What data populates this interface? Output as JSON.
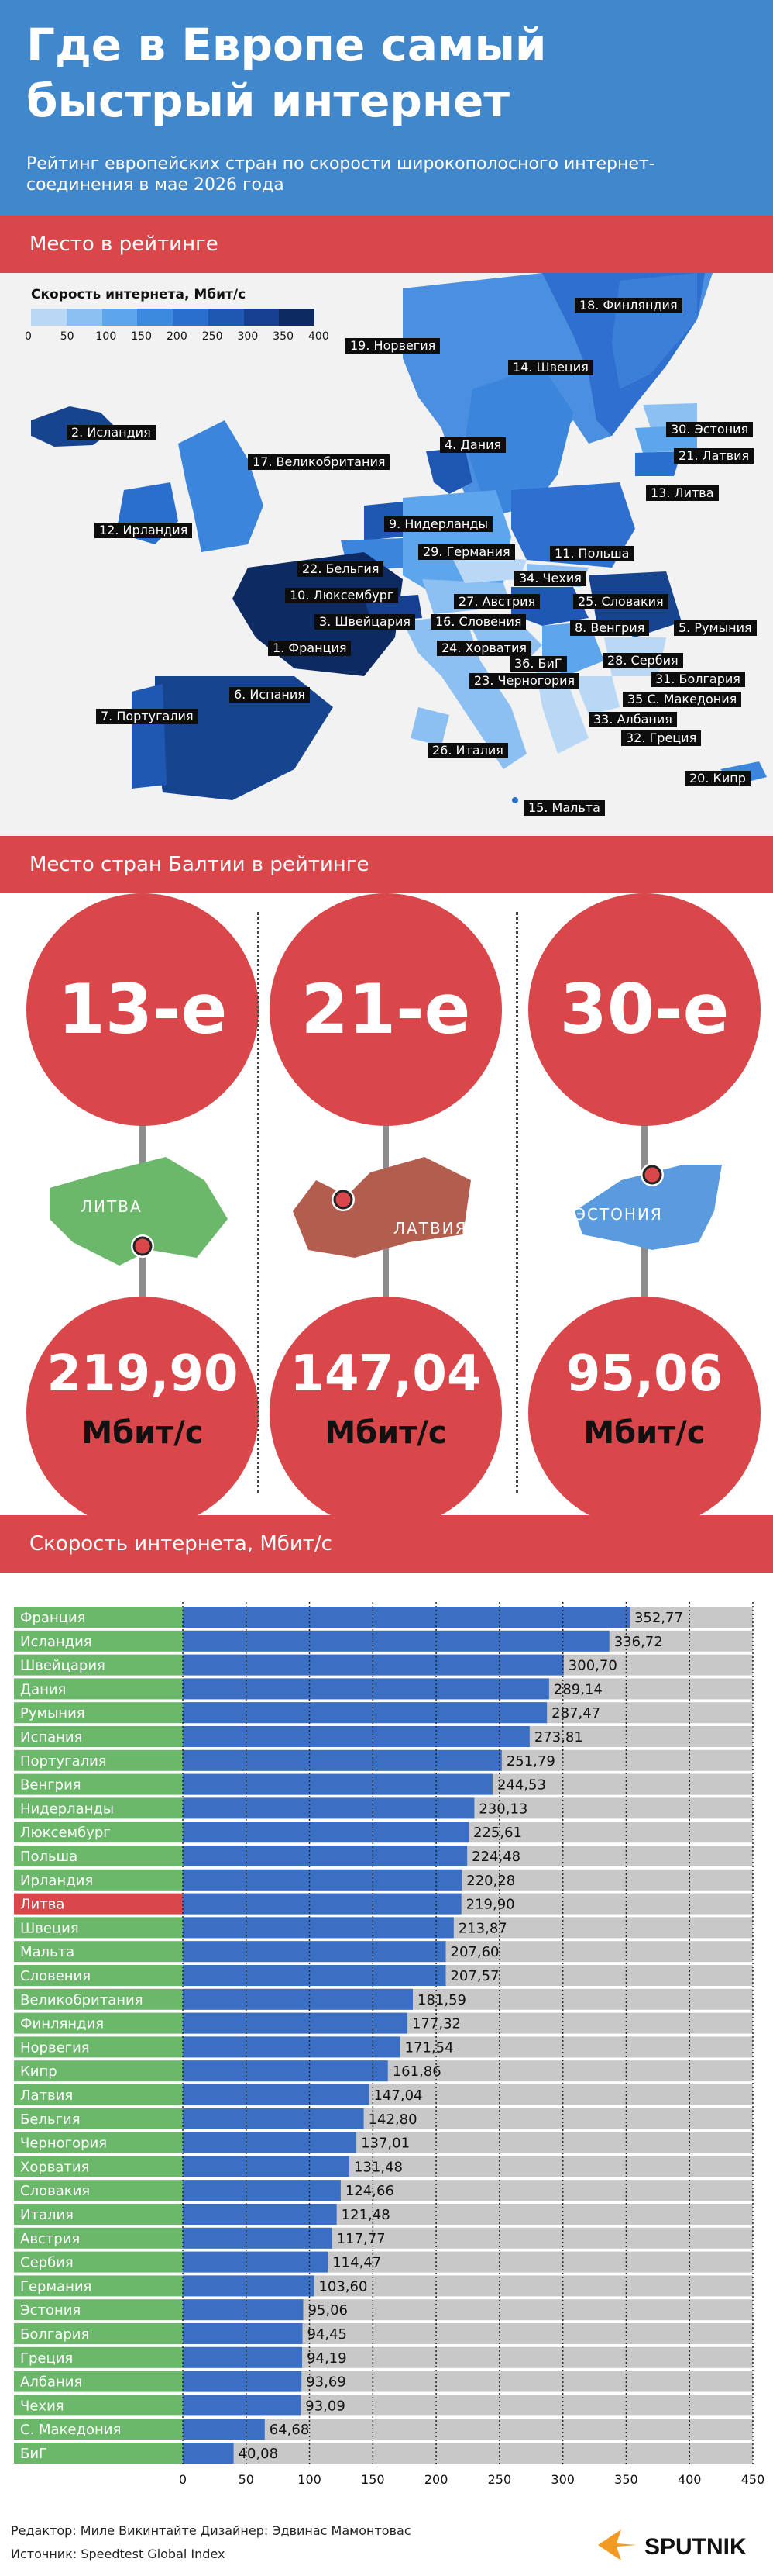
{
  "header": {
    "title": "Где в Европе самый быстрый интернет",
    "subtitle": "Рейтинг европейских стран по скорости широкополосного интернет-соединения в мае 2026 года"
  },
  "sections": {
    "map": "Место в рейтинге",
    "baltic": "Место стран Балтии в рейтинге",
    "speed": "Скорость интернета, Мбит/с"
  },
  "legend": {
    "title": "Скорость интернета, Мбит/с",
    "ticks": [
      "0",
      "50",
      "100",
      "150",
      "200",
      "250",
      "300",
      "350",
      "400"
    ],
    "colors": [
      "#b9d8f6",
      "#8cc0f2",
      "#5ea6ec",
      "#3b8ae0",
      "#2a6fce",
      "#1f58b3",
      "#153f8f",
      "#0e2a63"
    ]
  },
  "map_labels": [
    {
      "id": "finland",
      "text": "18. Финляндия"
    },
    {
      "id": "norway",
      "text": "19. Норвегия"
    },
    {
      "id": "sweden",
      "text": "14. Швеция"
    },
    {
      "id": "iceland",
      "text": "2. Исландия"
    },
    {
      "id": "estonia",
      "text": "30. Эстония"
    },
    {
      "id": "latvia",
      "text": "21. Латвия"
    },
    {
      "id": "denmark",
      "text": "4. Дания"
    },
    {
      "id": "uk",
      "text": "17. Великобритания"
    },
    {
      "id": "lithuania",
      "text": "13. Литва"
    },
    {
      "id": "ireland",
      "text": "12. Ирландия"
    },
    {
      "id": "netherlands",
      "text": "9. Нидерланды"
    },
    {
      "id": "germany",
      "text": "29. Германия"
    },
    {
      "id": "poland",
      "text": "11. Польша"
    },
    {
      "id": "belgium",
      "text": "22. Бельгия"
    },
    {
      "id": "czechia",
      "text": "34. Чехия"
    },
    {
      "id": "luxembourg",
      "text": "10. Люксембург"
    },
    {
      "id": "austria",
      "text": "27. Австрия"
    },
    {
      "id": "slovakia",
      "text": "25. Словакия"
    },
    {
      "id": "switzerland",
      "text": "3. Швейцария"
    },
    {
      "id": "slovenia",
      "text": "16. Словения"
    },
    {
      "id": "hungary",
      "text": "8. Венгрия"
    },
    {
      "id": "romania",
      "text": "5. Румыния"
    },
    {
      "id": "france",
      "text": "1. Франция"
    },
    {
      "id": "croatia",
      "text": "24. Хорватия"
    },
    {
      "id": "serbia",
      "text": "28. Сербия"
    },
    {
      "id": "bih",
      "text": "36. БиГ"
    },
    {
      "id": "bulgaria",
      "text": "31. Болгария"
    },
    {
      "id": "montenegro",
      "text": "23. Черногория"
    },
    {
      "id": "macedonia",
      "text": "35 С. Македония"
    },
    {
      "id": "spain",
      "text": "6. Испания"
    },
    {
      "id": "albania",
      "text": "33. Албания"
    },
    {
      "id": "portugal",
      "text": "7. Португалия"
    },
    {
      "id": "greece",
      "text": "32. Греция"
    },
    {
      "id": "italy",
      "text": "26. Италия"
    },
    {
      "id": "cyprus",
      "text": "20. Кипр"
    },
    {
      "id": "malta",
      "text": "15. Мальта"
    }
  ],
  "baltic": [
    {
      "rank": "13-е",
      "country": "ЛИТВА",
      "speed": "219,90",
      "unit": "Мбит/с",
      "color": "#6cb86b"
    },
    {
      "rank": "21-е",
      "country": "ЛАТВИЯ",
      "speed": "147,04",
      "unit": "Мбит/с",
      "color": "#b35d4e"
    },
    {
      "rank": "30-е",
      "country": "ЭСТОНИЯ",
      "speed": "95,06",
      "unit": "Мбит/с",
      "color": "#5a9be0"
    }
  ],
  "chart_data": {
    "type": "bar",
    "orientation": "horizontal",
    "xlim": [
      0,
      450
    ],
    "x_ticks": [
      0,
      50,
      100,
      150,
      200,
      250,
      300,
      350,
      400,
      450
    ],
    "highlight": "Литва",
    "categories": [
      "Франция",
      "Исландия",
      "Швейцария",
      "Дания",
      "Румыния",
      "Испания",
      "Португалия",
      "Венгрия",
      "Нидерланды",
      "Люксембург",
      "Польша",
      "Ирландия",
      "Литва",
      "Швеция",
      "Мальта",
      "Словения",
      "Великобритания",
      "Финляндия",
      "Норвегия",
      "Кипр",
      "Латвия",
      "Бельгия",
      "Черногория",
      "Хорватия",
      "Словакия",
      "Италия",
      "Австрия",
      "Сербия",
      "Германия",
      "Эстония",
      "Болгария",
      "Греция",
      "Албания",
      "Чехия",
      "С. Македония",
      "БиГ"
    ],
    "values": [
      352.77,
      336.72,
      300.7,
      289.14,
      287.47,
      273.81,
      251.79,
      244.53,
      230.13,
      225.61,
      224.48,
      220.28,
      219.9,
      213.87,
      207.6,
      207.57,
      181.59,
      177.32,
      171.54,
      161.86,
      147.04,
      142.8,
      137.01,
      131.48,
      124.66,
      121.48,
      117.77,
      114.47,
      103.6,
      95.06,
      94.45,
      94.19,
      93.69,
      93.09,
      64.68,
      40.08
    ],
    "labels": [
      "352,77",
      "336,72",
      "300,70",
      "289,14",
      "287,47",
      "273,81",
      "251,79",
      "244,53",
      "230,13",
      "225,61",
      "224,48",
      "220,28",
      "219,90",
      "213,87",
      "207,60",
      "207,57",
      "181,59",
      "177,32",
      "171,54",
      "161,86",
      "147,04",
      "142,80",
      "137,01",
      "131,48",
      "124,66",
      "121,48",
      "117,77",
      "114,47",
      "103,60",
      "95,06",
      "94,45",
      "94,19",
      "93,69",
      "93,09",
      "64,68",
      "40,08"
    ],
    "colors": {
      "bar": "#3b6fc4",
      "track": "#c8c8c8",
      "label_bg": "#6cb86b",
      "highlight_bg": "#d9474b"
    }
  },
  "footer": {
    "editor": "Редактор: Миле Викинтайте  Дизайнер: Эдвинас Мамонтовас",
    "source": "Источник: Speedtest Global Index",
    "logo": "SPUTNIK"
  }
}
